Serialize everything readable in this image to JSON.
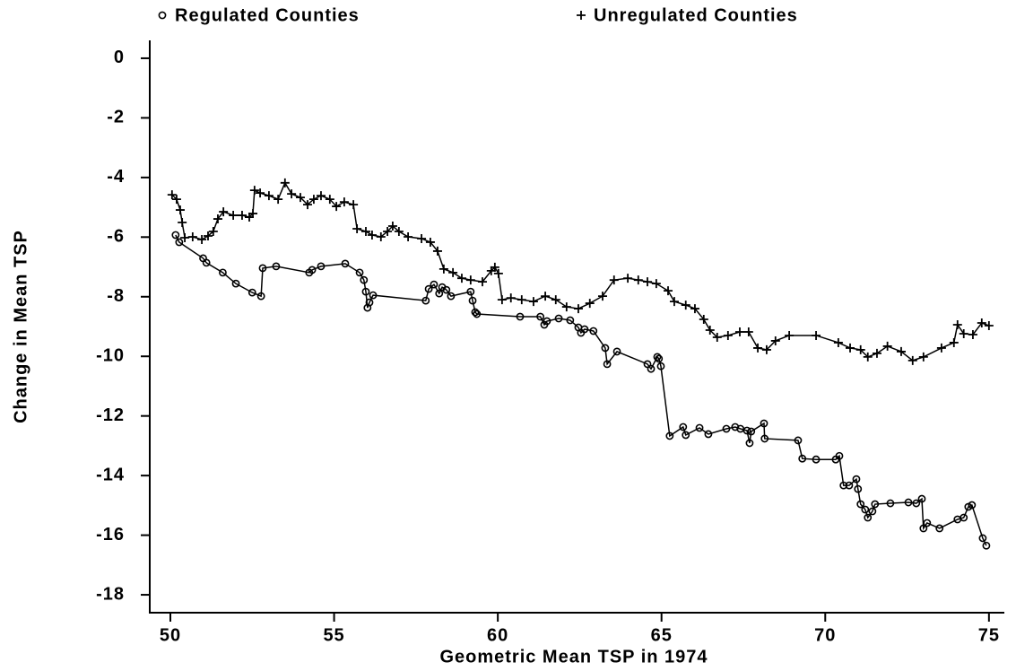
{
  "chart_data": {
    "type": "line",
    "x_label": "Geometric Mean TSP in 1974",
    "y_label": "Change in Mean TSP",
    "xlim": [
      49.37,
      75.47
    ],
    "ylim": [
      -18.6,
      0.6
    ],
    "xticks": [
      50,
      55,
      60,
      65,
      70,
      75
    ],
    "yticks": [
      0,
      -2,
      -4,
      -6,
      -8,
      -10,
      -12,
      -14,
      -16,
      -18
    ],
    "series": [
      {
        "name": "Regulated Counties",
        "marker": "circle",
        "color": "#000000",
        "x": [
          50.16,
          50.27,
          51.0,
          51.1,
          51.6,
          52.0,
          52.5,
          52.77,
          52.82,
          53.23,
          54.24,
          54.33,
          54.6,
          55.34,
          55.78,
          55.91,
          55.97,
          56.02,
          56.08,
          56.19,
          57.8,
          57.89,
          58.05,
          58.21,
          58.3,
          58.43,
          58.57,
          59.17,
          59.23,
          59.31,
          59.36,
          60.68,
          61.3,
          61.42,
          61.5,
          61.86,
          62.21,
          62.46,
          62.54,
          62.65,
          62.92,
          63.28,
          63.34,
          63.64,
          64.57,
          64.68,
          64.87,
          64.92,
          64.98,
          65.25,
          65.66,
          65.74,
          66.16,
          66.43,
          66.98,
          67.25,
          67.41,
          67.61,
          67.69,
          67.74,
          68.13,
          68.15,
          69.17,
          69.3,
          69.72,
          70.32,
          70.43,
          70.56,
          70.73,
          70.95,
          71.0,
          71.08,
          71.22,
          71.3,
          71.44,
          71.52,
          71.99,
          72.54,
          72.78,
          72.95,
          73.0,
          73.11,
          73.49,
          74.04,
          74.23,
          74.37,
          74.48,
          74.81,
          74.92
        ],
        "values": [
          -5.93,
          -6.17,
          -6.71,
          -6.86,
          -7.19,
          -7.56,
          -7.86,
          -7.98,
          -7.04,
          -6.98,
          -7.19,
          -7.1,
          -6.98,
          -6.89,
          -7.19,
          -7.44,
          -7.83,
          -8.37,
          -8.19,
          -7.95,
          -8.13,
          -7.74,
          -7.59,
          -7.89,
          -7.68,
          -7.77,
          -7.98,
          -7.83,
          -8.13,
          -8.52,
          -8.58,
          -8.67,
          -8.67,
          -8.94,
          -8.82,
          -8.73,
          -8.79,
          -9.03,
          -9.21,
          -9.09,
          -9.15,
          -9.72,
          -10.26,
          -9.84,
          -10.26,
          -10.42,
          -10.02,
          -10.08,
          -10.33,
          -12.67,
          -12.37,
          -12.64,
          -12.4,
          -12.61,
          -12.43,
          -12.37,
          -12.43,
          -12.49,
          -12.91,
          -12.52,
          -12.25,
          -12.76,
          -12.82,
          -13.43,
          -13.46,
          -13.46,
          -13.34,
          -14.33,
          -14.33,
          -14.12,
          -14.45,
          -14.96,
          -15.14,
          -15.41,
          -15.2,
          -14.96,
          -14.93,
          -14.9,
          -14.93,
          -14.78,
          -15.77,
          -15.59,
          -15.77,
          -15.47,
          -15.41,
          -15.05,
          -14.99,
          -16.1,
          -16.35
        ]
      },
      {
        "name": "Unregulated Counties",
        "marker": "plus",
        "color": "#000000",
        "x": [
          50.05,
          50.19,
          50.3,
          50.36,
          50.44,
          50.68,
          50.96,
          51.15,
          51.31,
          51.45,
          51.62,
          51.92,
          52.19,
          52.41,
          52.52,
          52.57,
          52.74,
          53.01,
          53.29,
          53.5,
          53.7,
          53.97,
          54.19,
          54.38,
          54.6,
          54.87,
          55.07,
          55.31,
          55.59,
          55.7,
          55.97,
          56.16,
          56.43,
          56.63,
          56.79,
          56.98,
          57.26,
          57.67,
          57.94,
          58.16,
          58.35,
          58.63,
          58.9,
          59.17,
          59.53,
          59.8,
          59.91,
          60.02,
          60.13,
          60.4,
          60.73,
          61.09,
          61.45,
          61.77,
          62.1,
          62.46,
          62.81,
          63.2,
          63.55,
          63.97,
          64.29,
          64.57,
          64.84,
          65.2,
          65.39,
          65.74,
          66.02,
          66.29,
          66.48,
          66.7,
          67.03,
          67.39,
          67.66,
          67.94,
          68.21,
          68.48,
          68.9,
          69.72,
          70.4,
          70.76,
          71.08,
          71.3,
          71.58,
          71.9,
          72.32,
          72.67,
          73.0,
          73.55,
          73.93,
          74.04,
          74.23,
          74.51,
          74.78,
          75.0
        ],
        "values": [
          -4.58,
          -4.73,
          -5.09,
          -5.51,
          -6.02,
          -5.99,
          -6.08,
          -5.96,
          -5.81,
          -5.39,
          -5.15,
          -5.27,
          -5.27,
          -5.33,
          -5.21,
          -4.43,
          -4.52,
          -4.61,
          -4.73,
          -4.18,
          -4.55,
          -4.67,
          -4.91,
          -4.73,
          -4.61,
          -4.73,
          -4.97,
          -4.82,
          -4.91,
          -5.72,
          -5.81,
          -5.93,
          -5.99,
          -5.81,
          -5.63,
          -5.81,
          -5.99,
          -6.05,
          -6.17,
          -6.47,
          -7.07,
          -7.19,
          -7.38,
          -7.44,
          -7.5,
          -7.13,
          -7.01,
          -7.22,
          -8.1,
          -8.04,
          -8.1,
          -8.16,
          -7.98,
          -8.1,
          -8.34,
          -8.4,
          -8.22,
          -7.98,
          -7.44,
          -7.38,
          -7.44,
          -7.5,
          -7.56,
          -7.8,
          -8.16,
          -8.28,
          -8.4,
          -8.76,
          -9.12,
          -9.36,
          -9.3,
          -9.18,
          -9.18,
          -9.72,
          -9.78,
          -9.48,
          -9.3,
          -9.3,
          -9.54,
          -9.72,
          -9.78,
          -10.02,
          -9.9,
          -9.66,
          -9.84,
          -10.14,
          -10.02,
          -9.72,
          -9.54,
          -8.94,
          -9.24,
          -9.27,
          -8.88,
          -8.97
        ]
      }
    ]
  }
}
